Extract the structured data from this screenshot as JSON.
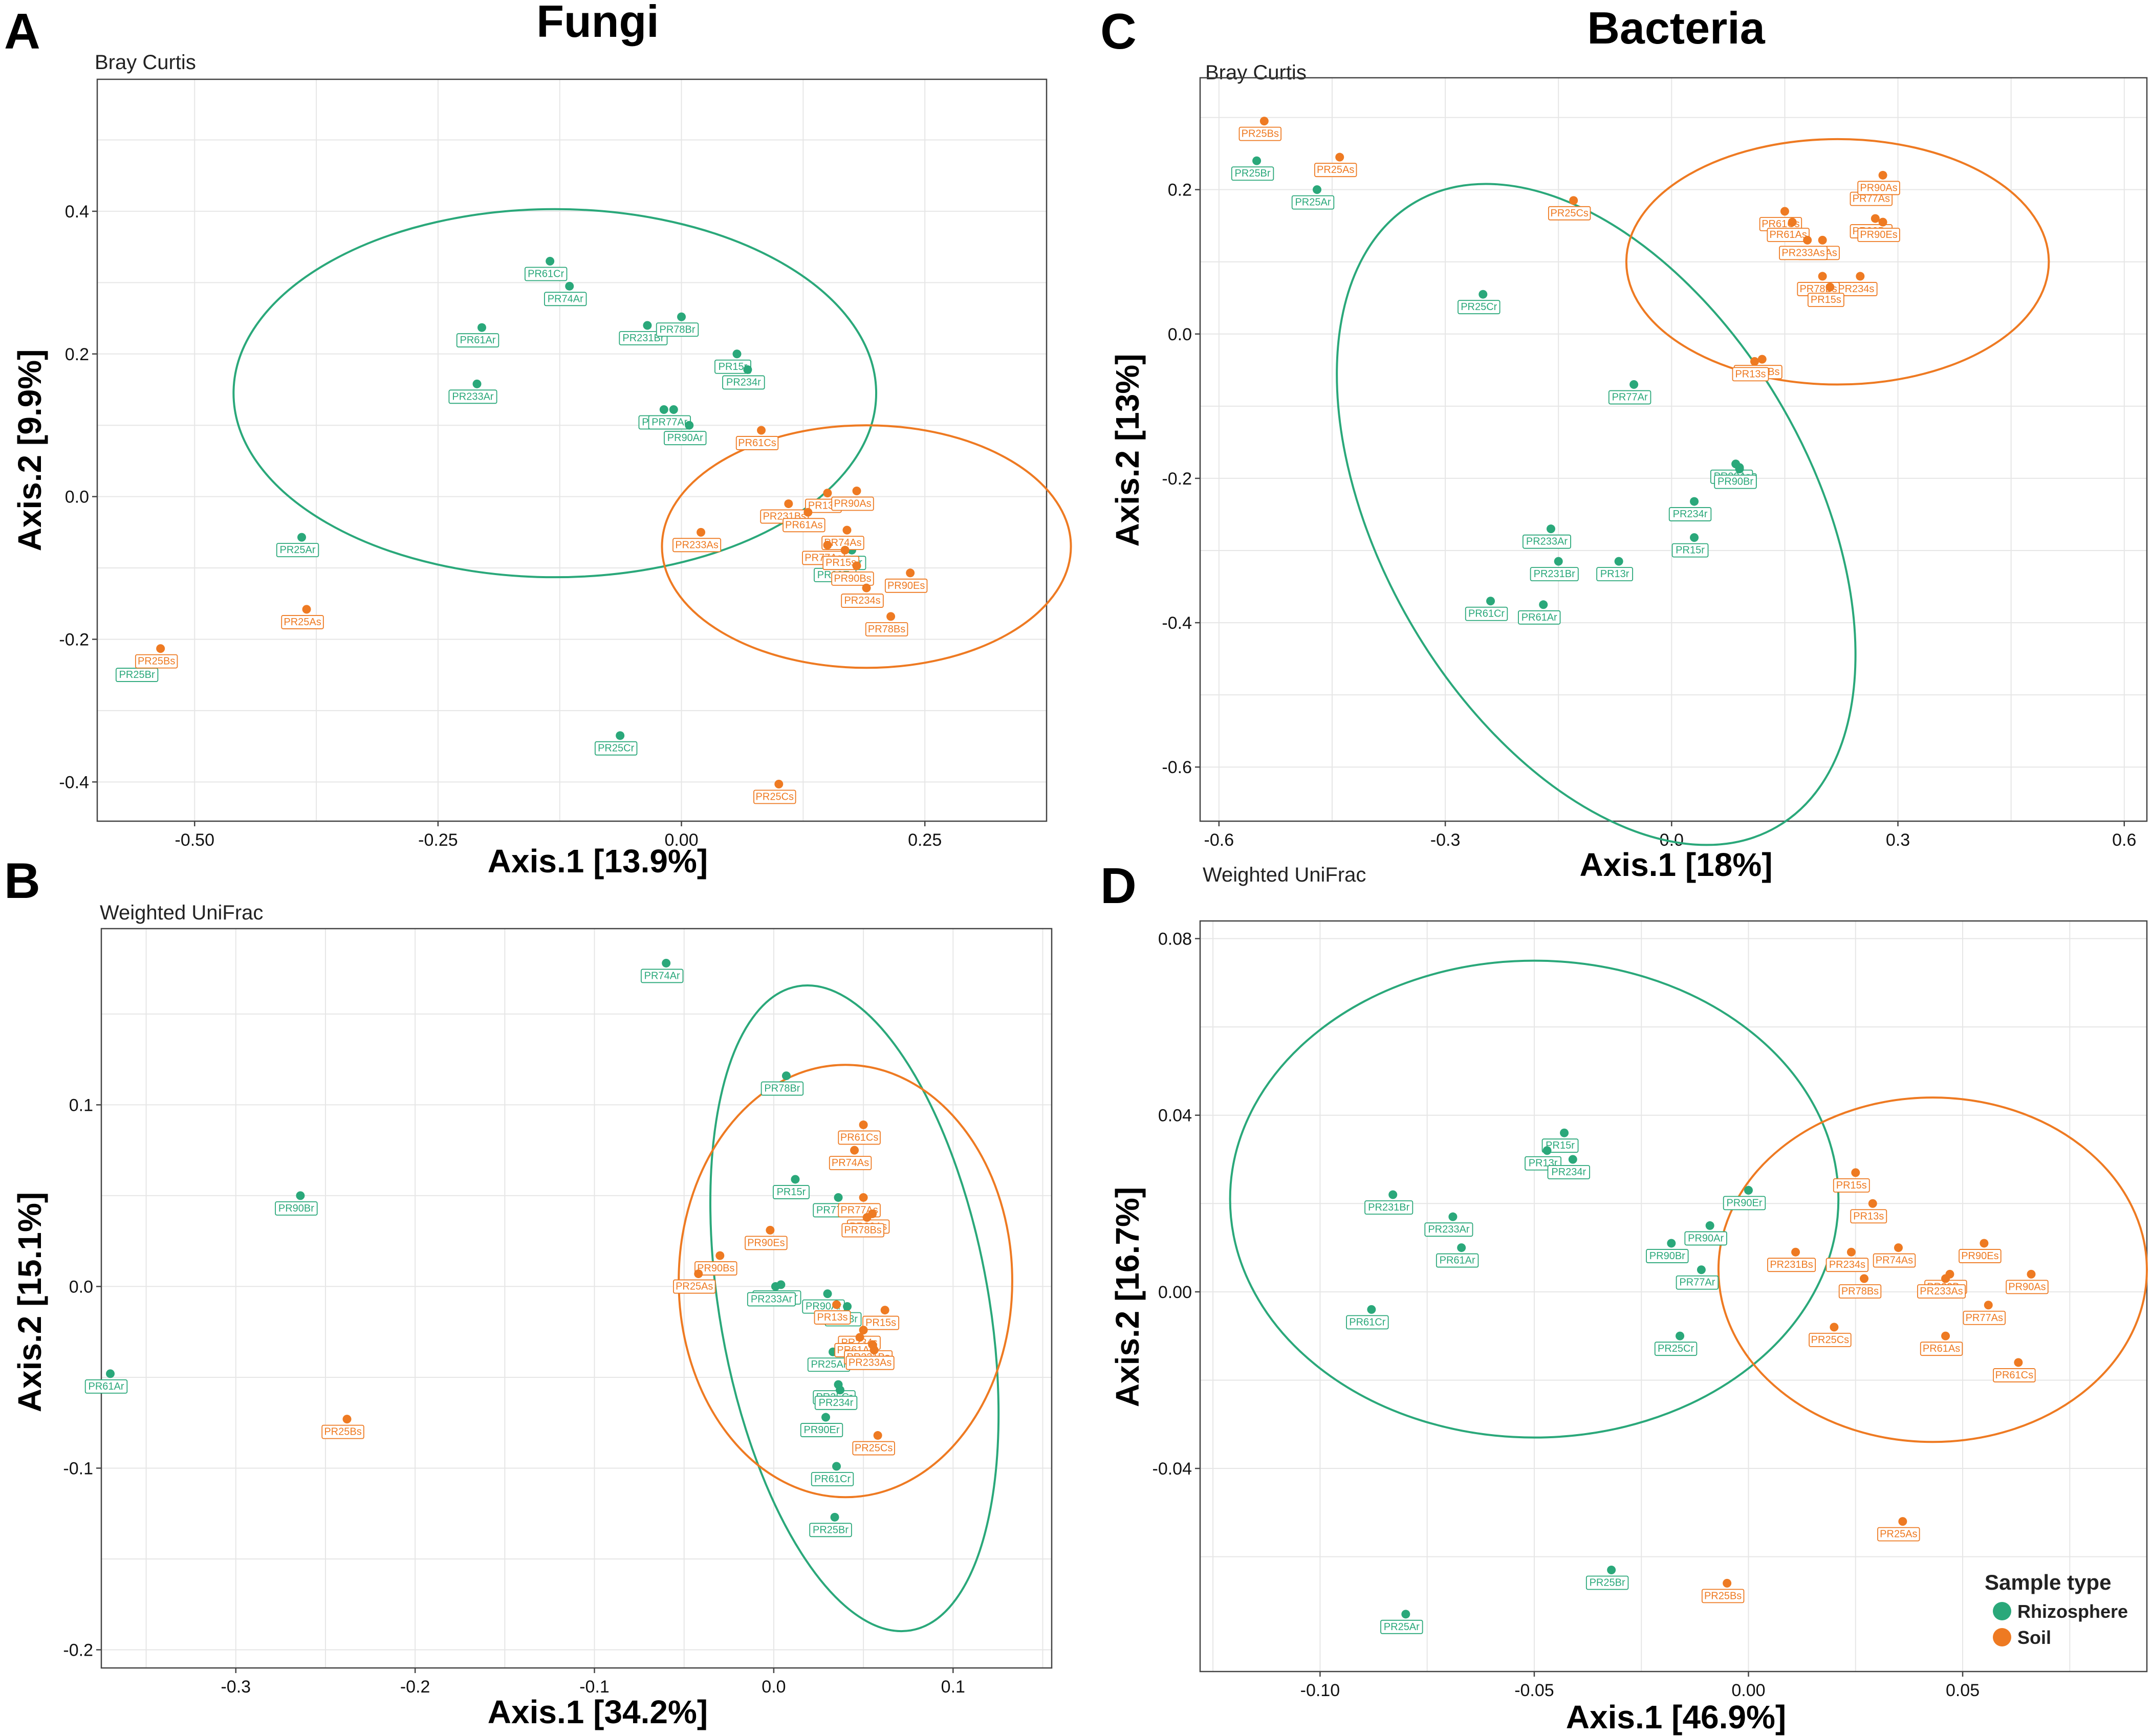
{
  "column_titles": {
    "fungi": "Fungi",
    "bacteria": "Bacteria"
  },
  "legend": {
    "title": "Sample type",
    "items": [
      {
        "label": "Rhizosphere",
        "color": "#2aa87a"
      },
      {
        "label": "Soil",
        "color": "#ee7a22"
      }
    ]
  },
  "chart_data": [
    {
      "panel": "A",
      "type": "scatter",
      "subtitle": "Bray Curtis",
      "xlabel": "Axis.1 [13.9%]",
      "ylabel": "Axis.2 [9.9%]",
      "xlim": [
        -0.6,
        0.375
      ],
      "ylim": [
        -0.455,
        0.585
      ],
      "xticks": [
        -0.5,
        -0.25,
        0,
        0.25
      ],
      "xtick_labels": [
        "-0.50",
        "-0.25",
        "0.00",
        "0.25"
      ],
      "yticks": [
        -0.4,
        -0.2,
        0,
        0.2,
        0.4
      ],
      "ytick_labels": [
        "-0.4",
        "-0.2",
        "0.0",
        "0.2",
        "0.4"
      ],
      "ellipses": [
        {
          "group": "Rhizosphere",
          "cx": -0.13,
          "cy": 0.145,
          "rx": 0.33,
          "ry": 0.258,
          "angle": 0
        },
        {
          "group": "Soil",
          "cx": 0.19,
          "cy": -0.07,
          "rx": 0.21,
          "ry": 0.17,
          "angle": 0
        }
      ],
      "points": [
        {
          "label": "PR61Cr",
          "group": "Rhizosphere",
          "x": -0.135,
          "y": 0.33
        },
        {
          "label": "PR74Ar",
          "group": "Rhizosphere",
          "x": -0.115,
          "y": 0.295
        },
        {
          "label": "PR61Ar",
          "group": "Rhizosphere",
          "x": -0.205,
          "y": 0.237
        },
        {
          "label": "PR231Br",
          "group": "Rhizosphere",
          "x": -0.035,
          "y": 0.24
        },
        {
          "label": "PR78Br",
          "group": "Rhizosphere",
          "x": 0.0,
          "y": 0.252
        },
        {
          "label": "PR15r",
          "group": "Rhizosphere",
          "x": 0.057,
          "y": 0.2
        },
        {
          "label": "PR234r",
          "group": "Rhizosphere",
          "x": 0.068,
          "y": 0.178
        },
        {
          "label": "PR233Ar",
          "group": "Rhizosphere",
          "x": -0.21,
          "y": 0.158
        },
        {
          "label": "PR90Br",
          "group": "Rhizosphere",
          "x": -0.018,
          "y": 0.122
        },
        {
          "label": "PR77Ar",
          "group": "Rhizosphere",
          "x": -0.008,
          "y": 0.122
        },
        {
          "label": "PR90Ar",
          "group": "Rhizosphere",
          "x": 0.008,
          "y": 0.1
        },
        {
          "label": "PR13r",
          "group": "Rhizosphere",
          "x": 0.175,
          "y": -0.075
        },
        {
          "label": "PR90Er",
          "group": "Rhizosphere",
          "x": 0.162,
          "y": -0.092
        },
        {
          "label": "PR25Ar",
          "group": "Rhizosphere",
          "x": -0.39,
          "y": -0.057
        },
        {
          "label": "PR25Br",
          "group": "Rhizosphere",
          "x": -0.555,
          "y": -0.232
        },
        {
          "label": "PR25Cr",
          "group": "Rhizosphere",
          "x": -0.063,
          "y": -0.335
        },
        {
          "label": "PR61Cs",
          "group": "Soil",
          "x": 0.082,
          "y": 0.093
        },
        {
          "label": "PR13s",
          "group": "Soil",
          "x": 0.15,
          "y": 0.005
        },
        {
          "label": "PR90As",
          "group": "Soil",
          "x": 0.18,
          "y": 0.008
        },
        {
          "label": "PR231Bs",
          "group": "Soil",
          "x": 0.11,
          "y": -0.01
        },
        {
          "label": "PR74As",
          "group": "Soil",
          "x": 0.17,
          "y": -0.047
        },
        {
          "label": "PR61As",
          "group": "Soil",
          "x": 0.13,
          "y": -0.022
        },
        {
          "label": "PR233As",
          "group": "Soil",
          "x": 0.02,
          "y": -0.05
        },
        {
          "label": "PR77As",
          "group": "Soil",
          "x": 0.15,
          "y": -0.068
        },
        {
          "label": "PR15s",
          "group": "Soil",
          "x": 0.168,
          "y": -0.075
        },
        {
          "label": "PR90Es",
          "group": "Soil",
          "x": 0.235,
          "y": -0.107
        },
        {
          "label": "PR90Bs",
          "group": "Soil",
          "x": 0.18,
          "y": -0.097
        },
        {
          "label": "PR234s",
          "group": "Soil",
          "x": 0.19,
          "y": -0.128
        },
        {
          "label": "PR78Bs",
          "group": "Soil",
          "x": 0.215,
          "y": -0.168
        },
        {
          "label": "PR25As",
          "group": "Soil",
          "x": -0.385,
          "y": -0.158
        },
        {
          "label": "PR25Bs",
          "group": "Soil",
          "x": -0.535,
          "y": -0.213
        },
        {
          "label": "PR25Cs",
          "group": "Soil",
          "x": 0.1,
          "y": -0.403
        }
      ]
    },
    {
      "panel": "B",
      "type": "scatter",
      "subtitle": "Weighted UniFrac",
      "xlabel": "Axis.1 [34.2%]",
      "ylabel": "Axis.2 [15.1%]",
      "xlim": [
        -0.375,
        0.155
      ],
      "ylim": [
        -0.21,
        0.197
      ],
      "xticks": [
        -0.3,
        -0.2,
        -0.1,
        0,
        0.1
      ],
      "xtick_labels": [
        "-0.3",
        "-0.2",
        "-0.1",
        "0.0",
        "0.1"
      ],
      "yticks": [
        -0.2,
        -0.1,
        0,
        0.1
      ],
      "ytick_labels": [
        "-0.2",
        "-0.1",
        "0.0",
        "0.1"
      ],
      "ellipses": [
        {
          "group": "Rhizosphere",
          "cx": 0.045,
          "cy": -0.012,
          "rx": 0.075,
          "ry": 0.18,
          "angle": -10
        },
        {
          "group": "Soil",
          "cx": 0.04,
          "cy": 0.003,
          "rx": 0.093,
          "ry": 0.119,
          "angle": 0
        }
      ],
      "points": [
        {
          "label": "PR74Ar",
          "group": "Rhizosphere",
          "x": -0.06,
          "y": 0.178
        },
        {
          "label": "PR78Br",
          "group": "Rhizosphere",
          "x": 0.007,
          "y": 0.116
        },
        {
          "label": "PR90Br",
          "group": "Rhizosphere",
          "x": -0.264,
          "y": 0.05
        },
        {
          "label": "PR15r",
          "group": "Rhizosphere",
          "x": 0.012,
          "y": 0.059
        },
        {
          "label": "PR77Ar",
          "group": "Rhizosphere",
          "x": 0.036,
          "y": 0.049
        },
        {
          "label": "PR231Br",
          "group": "Rhizosphere",
          "x": 0.004,
          "y": 0.001
        },
        {
          "label": "PR233Ar",
          "group": "Rhizosphere",
          "x": 0.001,
          "y": 0.0
        },
        {
          "label": "PR90Ar",
          "group": "Rhizosphere",
          "x": 0.03,
          "y": -0.004
        },
        {
          "label": "PR13r",
          "group": "Rhizosphere",
          "x": 0.041,
          "y": -0.011
        },
        {
          "label": "PR25Ar",
          "group": "Rhizosphere",
          "x": 0.033,
          "y": -0.036
        },
        {
          "label": "PR25Cr",
          "group": "Rhizosphere",
          "x": 0.036,
          "y": -0.054
        },
        {
          "label": "PR234r",
          "group": "Rhizosphere",
          "x": 0.037,
          "y": -0.057
        },
        {
          "label": "PR90Er",
          "group": "Rhizosphere",
          "x": 0.029,
          "y": -0.072
        },
        {
          "label": "PR61Cr",
          "group": "Rhizosphere",
          "x": 0.035,
          "y": -0.099
        },
        {
          "label": "PR25Br",
          "group": "Rhizosphere",
          "x": 0.034,
          "y": -0.127
        },
        {
          "label": "PR61Ar",
          "group": "Rhizosphere",
          "x": -0.37,
          "y": -0.048
        },
        {
          "label": "PR61Cs",
          "group": "Soil",
          "x": 0.05,
          "y": 0.089
        },
        {
          "label": "PR74As",
          "group": "Soil",
          "x": 0.045,
          "y": 0.075
        },
        {
          "label": "PR77As",
          "group": "Soil",
          "x": 0.05,
          "y": 0.049
        },
        {
          "label": "PR90As",
          "group": "Soil",
          "x": 0.055,
          "y": 0.04
        },
        {
          "label": "PR78Bs",
          "group": "Soil",
          "x": 0.052,
          "y": 0.038
        },
        {
          "label": "PR90Es",
          "group": "Soil",
          "x": -0.002,
          "y": 0.031
        },
        {
          "label": "PR90Bs",
          "group": "Soil",
          "x": -0.03,
          "y": 0.017
        },
        {
          "label": "PR25As",
          "group": "Soil",
          "x": -0.042,
          "y": 0.007
        },
        {
          "label": "PR15s",
          "group": "Soil",
          "x": 0.062,
          "y": -0.013
        },
        {
          "label": "PR13s",
          "group": "Soil",
          "x": 0.035,
          "y": -0.01
        },
        {
          "label": "PR234s",
          "group": "Soil",
          "x": 0.05,
          "y": -0.024
        },
        {
          "label": "PR61As",
          "group": "Soil",
          "x": 0.048,
          "y": -0.028
        },
        {
          "label": "PR231Bs",
          "group": "Soil",
          "x": 0.055,
          "y": -0.032
        },
        {
          "label": "PR233As",
          "group": "Soil",
          "x": 0.056,
          "y": -0.035
        },
        {
          "label": "PR25Cs",
          "group": "Soil",
          "x": 0.058,
          "y": -0.082
        },
        {
          "label": "PR25Bs",
          "group": "Soil",
          "x": -0.238,
          "y": -0.073
        }
      ]
    },
    {
      "panel": "C",
      "type": "scatter",
      "subtitle": "Bray Curtis",
      "xlabel": "Axis.1 [18%]",
      "ylabel": "Axis.2 [13%]",
      "xlim": [
        -0.625,
        0.63
      ],
      "ylim": [
        -0.675,
        0.355
      ],
      "xticks": [
        -0.6,
        -0.3,
        0,
        0.3,
        0.6
      ],
      "xtick_labels": [
        "-0.6",
        "-0.3",
        "0.0",
        "0.3",
        "0.6"
      ],
      "yticks": [
        -0.6,
        -0.4,
        -0.2,
        0,
        0.2
      ],
      "ytick_labels": [
        "-0.6",
        "-0.4",
        "-0.2",
        "0.0",
        "0.2"
      ],
      "ellipses": [
        {
          "group": "Rhizosphere",
          "cx": -0.1,
          "cy": -0.25,
          "rx": 0.285,
          "ry": 0.5,
          "angle": -30
        },
        {
          "group": "Soil",
          "cx": 0.22,
          "cy": 0.1,
          "rx": 0.28,
          "ry": 0.17,
          "angle": 0
        }
      ],
      "points": [
        {
          "label": "PR25Br",
          "group": "Rhizosphere",
          "x": -0.55,
          "y": 0.24
        },
        {
          "label": "PR25Ar",
          "group": "Rhizosphere",
          "x": -0.47,
          "y": 0.2
        },
        {
          "label": "PR25Cr",
          "group": "Rhizosphere",
          "x": -0.25,
          "y": 0.055
        },
        {
          "label": "PR77Ar",
          "group": "Rhizosphere",
          "x": -0.05,
          "y": -0.07
        },
        {
          "label": "PR90Er",
          "group": "Rhizosphere",
          "x": 0.09,
          "y": -0.185
        },
        {
          "label": "PR90Ar",
          "group": "Rhizosphere",
          "x": 0.085,
          "y": -0.18
        },
        {
          "label": "PR90Br",
          "group": "Rhizosphere",
          "x": 0.09,
          "y": -0.187
        },
        {
          "label": "PR234r",
          "group": "Rhizosphere",
          "x": 0.03,
          "y": -0.232
        },
        {
          "label": "PR15r",
          "group": "Rhizosphere",
          "x": 0.03,
          "y": -0.282
        },
        {
          "label": "PR233Ar",
          "group": "Rhizosphere",
          "x": -0.16,
          "y": -0.27
        },
        {
          "label": "PR231Br",
          "group": "Rhizosphere",
          "x": -0.15,
          "y": -0.315
        },
        {
          "label": "PR13r",
          "group": "Rhizosphere",
          "x": -0.07,
          "y": -0.315
        },
        {
          "label": "PR61Cr",
          "group": "Rhizosphere",
          "x": -0.24,
          "y": -0.37
        },
        {
          "label": "PR61Ar",
          "group": "Rhizosphere",
          "x": -0.17,
          "y": -0.375
        },
        {
          "label": "PR25Bs",
          "group": "Soil",
          "x": -0.54,
          "y": 0.295
        },
        {
          "label": "PR25As",
          "group": "Soil",
          "x": -0.44,
          "y": 0.245
        },
        {
          "label": "PR25Cs",
          "group": "Soil",
          "x": -0.13,
          "y": 0.185
        },
        {
          "label": "PR61Cs",
          "group": "Soil",
          "x": 0.15,
          "y": 0.17
        },
        {
          "label": "PR61As",
          "group": "Soil",
          "x": 0.16,
          "y": 0.155
        },
        {
          "label": "PR77As",
          "group": "Soil",
          "x": 0.27,
          "y": 0.205
        },
        {
          "label": "PR90As",
          "group": "Soil",
          "x": 0.28,
          "y": 0.22
        },
        {
          "label": "PR90Bs",
          "group": "Soil",
          "x": 0.27,
          "y": 0.16
        },
        {
          "label": "PR74As",
          "group": "Soil",
          "x": 0.2,
          "y": 0.13
        },
        {
          "label": "PR90Es",
          "group": "Soil",
          "x": 0.28,
          "y": 0.155
        },
        {
          "label": "PR233As",
          "group": "Soil",
          "x": 0.18,
          "y": 0.13
        },
        {
          "label": "PR234s",
          "group": "Soil",
          "x": 0.25,
          "y": 0.08
        },
        {
          "label": "PR78Bs",
          "group": "Soil",
          "x": 0.2,
          "y": 0.08
        },
        {
          "label": "PR15s",
          "group": "Soil",
          "x": 0.21,
          "y": 0.065
        },
        {
          "label": "PR231Bs",
          "group": "Soil",
          "x": 0.12,
          "y": -0.035
        },
        {
          "label": "PR13s",
          "group": "Soil",
          "x": 0.11,
          "y": -0.038
        }
      ]
    },
    {
      "panel": "D",
      "type": "scatter",
      "subtitle": "Weighted UniFrac",
      "xlabel": "Axis.1 [46.9%]",
      "ylabel": "Axis.2 [16.7%]",
      "xlim": [
        -0.128,
        0.093
      ],
      "ylim": [
        -0.086,
        0.084
      ],
      "xticks": [
        -0.1,
        -0.05,
        0,
        0.05
      ],
      "xtick_labels": [
        "-0.10",
        "-0.05",
        "0.00",
        "0.05"
      ],
      "yticks": [
        -0.04,
        0,
        0.04,
        0.08
      ],
      "ytick_labels": [
        "-0.04",
        "0.00",
        "0.04",
        "0.08"
      ],
      "ellipses": [
        {
          "group": "Rhizosphere",
          "cx": -0.05,
          "cy": 0.021,
          "rx": 0.071,
          "ry": 0.054,
          "angle": 0
        },
        {
          "group": "Soil",
          "cx": 0.043,
          "cy": 0.005,
          "rx": 0.05,
          "ry": 0.039,
          "angle": 0
        }
      ],
      "points": [
        {
          "label": "PR15r",
          "group": "Rhizosphere",
          "x": -0.043,
          "y": 0.036
        },
        {
          "label": "PR13r",
          "group": "Rhizosphere",
          "x": -0.047,
          "y": 0.032
        },
        {
          "label": "PR234r",
          "group": "Rhizosphere",
          "x": -0.041,
          "y": 0.03
        },
        {
          "label": "PR231Br",
          "group": "Rhizosphere",
          "x": -0.083,
          "y": 0.022
        },
        {
          "label": "PR233Ar",
          "group": "Rhizosphere",
          "x": -0.069,
          "y": 0.017
        },
        {
          "label": "PR61Ar",
          "group": "Rhizosphere",
          "x": -0.067,
          "y": 0.01
        },
        {
          "label": "PR61Cr",
          "group": "Rhizosphere",
          "x": -0.088,
          "y": -0.004
        },
        {
          "label": "PR90Er",
          "group": "Rhizosphere",
          "x": 0.0,
          "y": 0.023
        },
        {
          "label": "PR90Ar",
          "group": "Rhizosphere",
          "x": -0.009,
          "y": 0.015
        },
        {
          "label": "PR90Br",
          "group": "Rhizosphere",
          "x": -0.018,
          "y": 0.011
        },
        {
          "label": "PR77Ar",
          "group": "Rhizosphere",
          "x": -0.011,
          "y": 0.005
        },
        {
          "label": "PR25Cr",
          "group": "Rhizosphere",
          "x": -0.016,
          "y": -0.01
        },
        {
          "label": "PR25Br",
          "group": "Rhizosphere",
          "x": -0.032,
          "y": -0.063
        },
        {
          "label": "PR25Ar",
          "group": "Rhizosphere",
          "x": -0.08,
          "y": -0.073
        },
        {
          "label": "PR15s",
          "group": "Soil",
          "x": 0.025,
          "y": 0.027
        },
        {
          "label": "PR13s",
          "group": "Soil",
          "x": 0.029,
          "y": 0.02
        },
        {
          "label": "PR231Bs",
          "group": "Soil",
          "x": 0.011,
          "y": 0.009
        },
        {
          "label": "PR234s",
          "group": "Soil",
          "x": 0.024,
          "y": 0.009
        },
        {
          "label": "PR74As",
          "group": "Soil",
          "x": 0.035,
          "y": 0.01
        },
        {
          "label": "PR90Es",
          "group": "Soil",
          "x": 0.055,
          "y": 0.011
        },
        {
          "label": "PR90Bs",
          "group": "Soil",
          "x": 0.047,
          "y": 0.004
        },
        {
          "label": "PR90As",
          "group": "Soil",
          "x": 0.066,
          "y": 0.004
        },
        {
          "label": "PR78Bs",
          "group": "Soil",
          "x": 0.027,
          "y": 0.003
        },
        {
          "label": "PR233As",
          "group": "Soil",
          "x": 0.046,
          "y": 0.003
        },
        {
          "label": "PR77As",
          "group": "Soil",
          "x": 0.056,
          "y": -0.003
        },
        {
          "label": "PR25Cs",
          "group": "Soil",
          "x": 0.02,
          "y": -0.008
        },
        {
          "label": "PR61As",
          "group": "Soil",
          "x": 0.046,
          "y": -0.01
        },
        {
          "label": "PR61Cs",
          "group": "Soil",
          "x": 0.063,
          "y": -0.016
        },
        {
          "label": "PR25As",
          "group": "Soil",
          "x": 0.036,
          "y": -0.052
        },
        {
          "label": "PR25Bs",
          "group": "Soil",
          "x": -0.005,
          "y": -0.066
        }
      ]
    }
  ]
}
